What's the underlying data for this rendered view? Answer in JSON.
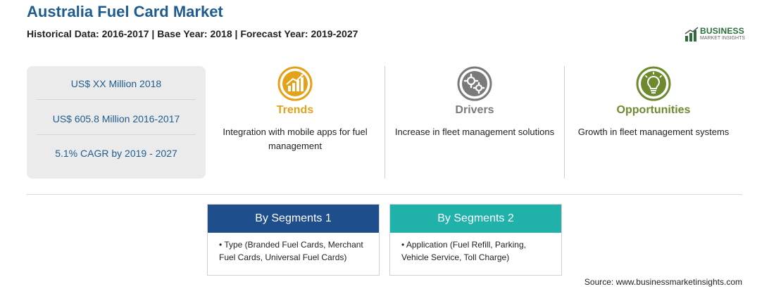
{
  "header": {
    "title": "Australia Fuel Card Market",
    "subtitle": "Historical Data: 2016-2017 | Base Year: 2018 | Forecast Year: 2019-2027"
  },
  "logo": {
    "text": "BUSINESS",
    "sub": "MARKET INSIGHTS",
    "color": "#2b6e3a"
  },
  "stats": [
    "US$ XX Million 2018",
    "US$ 605.8 Million 2016-2017",
    "5.1% CAGR by 2019 - 2027"
  ],
  "columns": [
    {
      "title": "Trends",
      "text": "Integration with mobile apps for fuel management",
      "color": "#e3a21a",
      "icon": "chart-trend-icon"
    },
    {
      "title": "Drivers",
      "text": "Increase in fleet management solutions",
      "color": "#7a7a7a",
      "icon": "gears-icon"
    },
    {
      "title": "Opportunities",
      "text": "Growth in fleet management systems",
      "color": "#6e8a2e",
      "icon": "lightbulb-icon"
    }
  ],
  "segments": [
    {
      "title": "By Segments 1",
      "item": "Type (Branded Fuel Cards, Merchant Fuel Cards, Universal Fuel Cards)",
      "color": "#1f4e8c"
    },
    {
      "title": "By Segments 2",
      "item": "Application (Fuel Refill, Parking, Vehicle Service, Toll Charge)",
      "color": "#1fb1aa"
    }
  ],
  "source": "Source: www.businessmarketinsights.com"
}
